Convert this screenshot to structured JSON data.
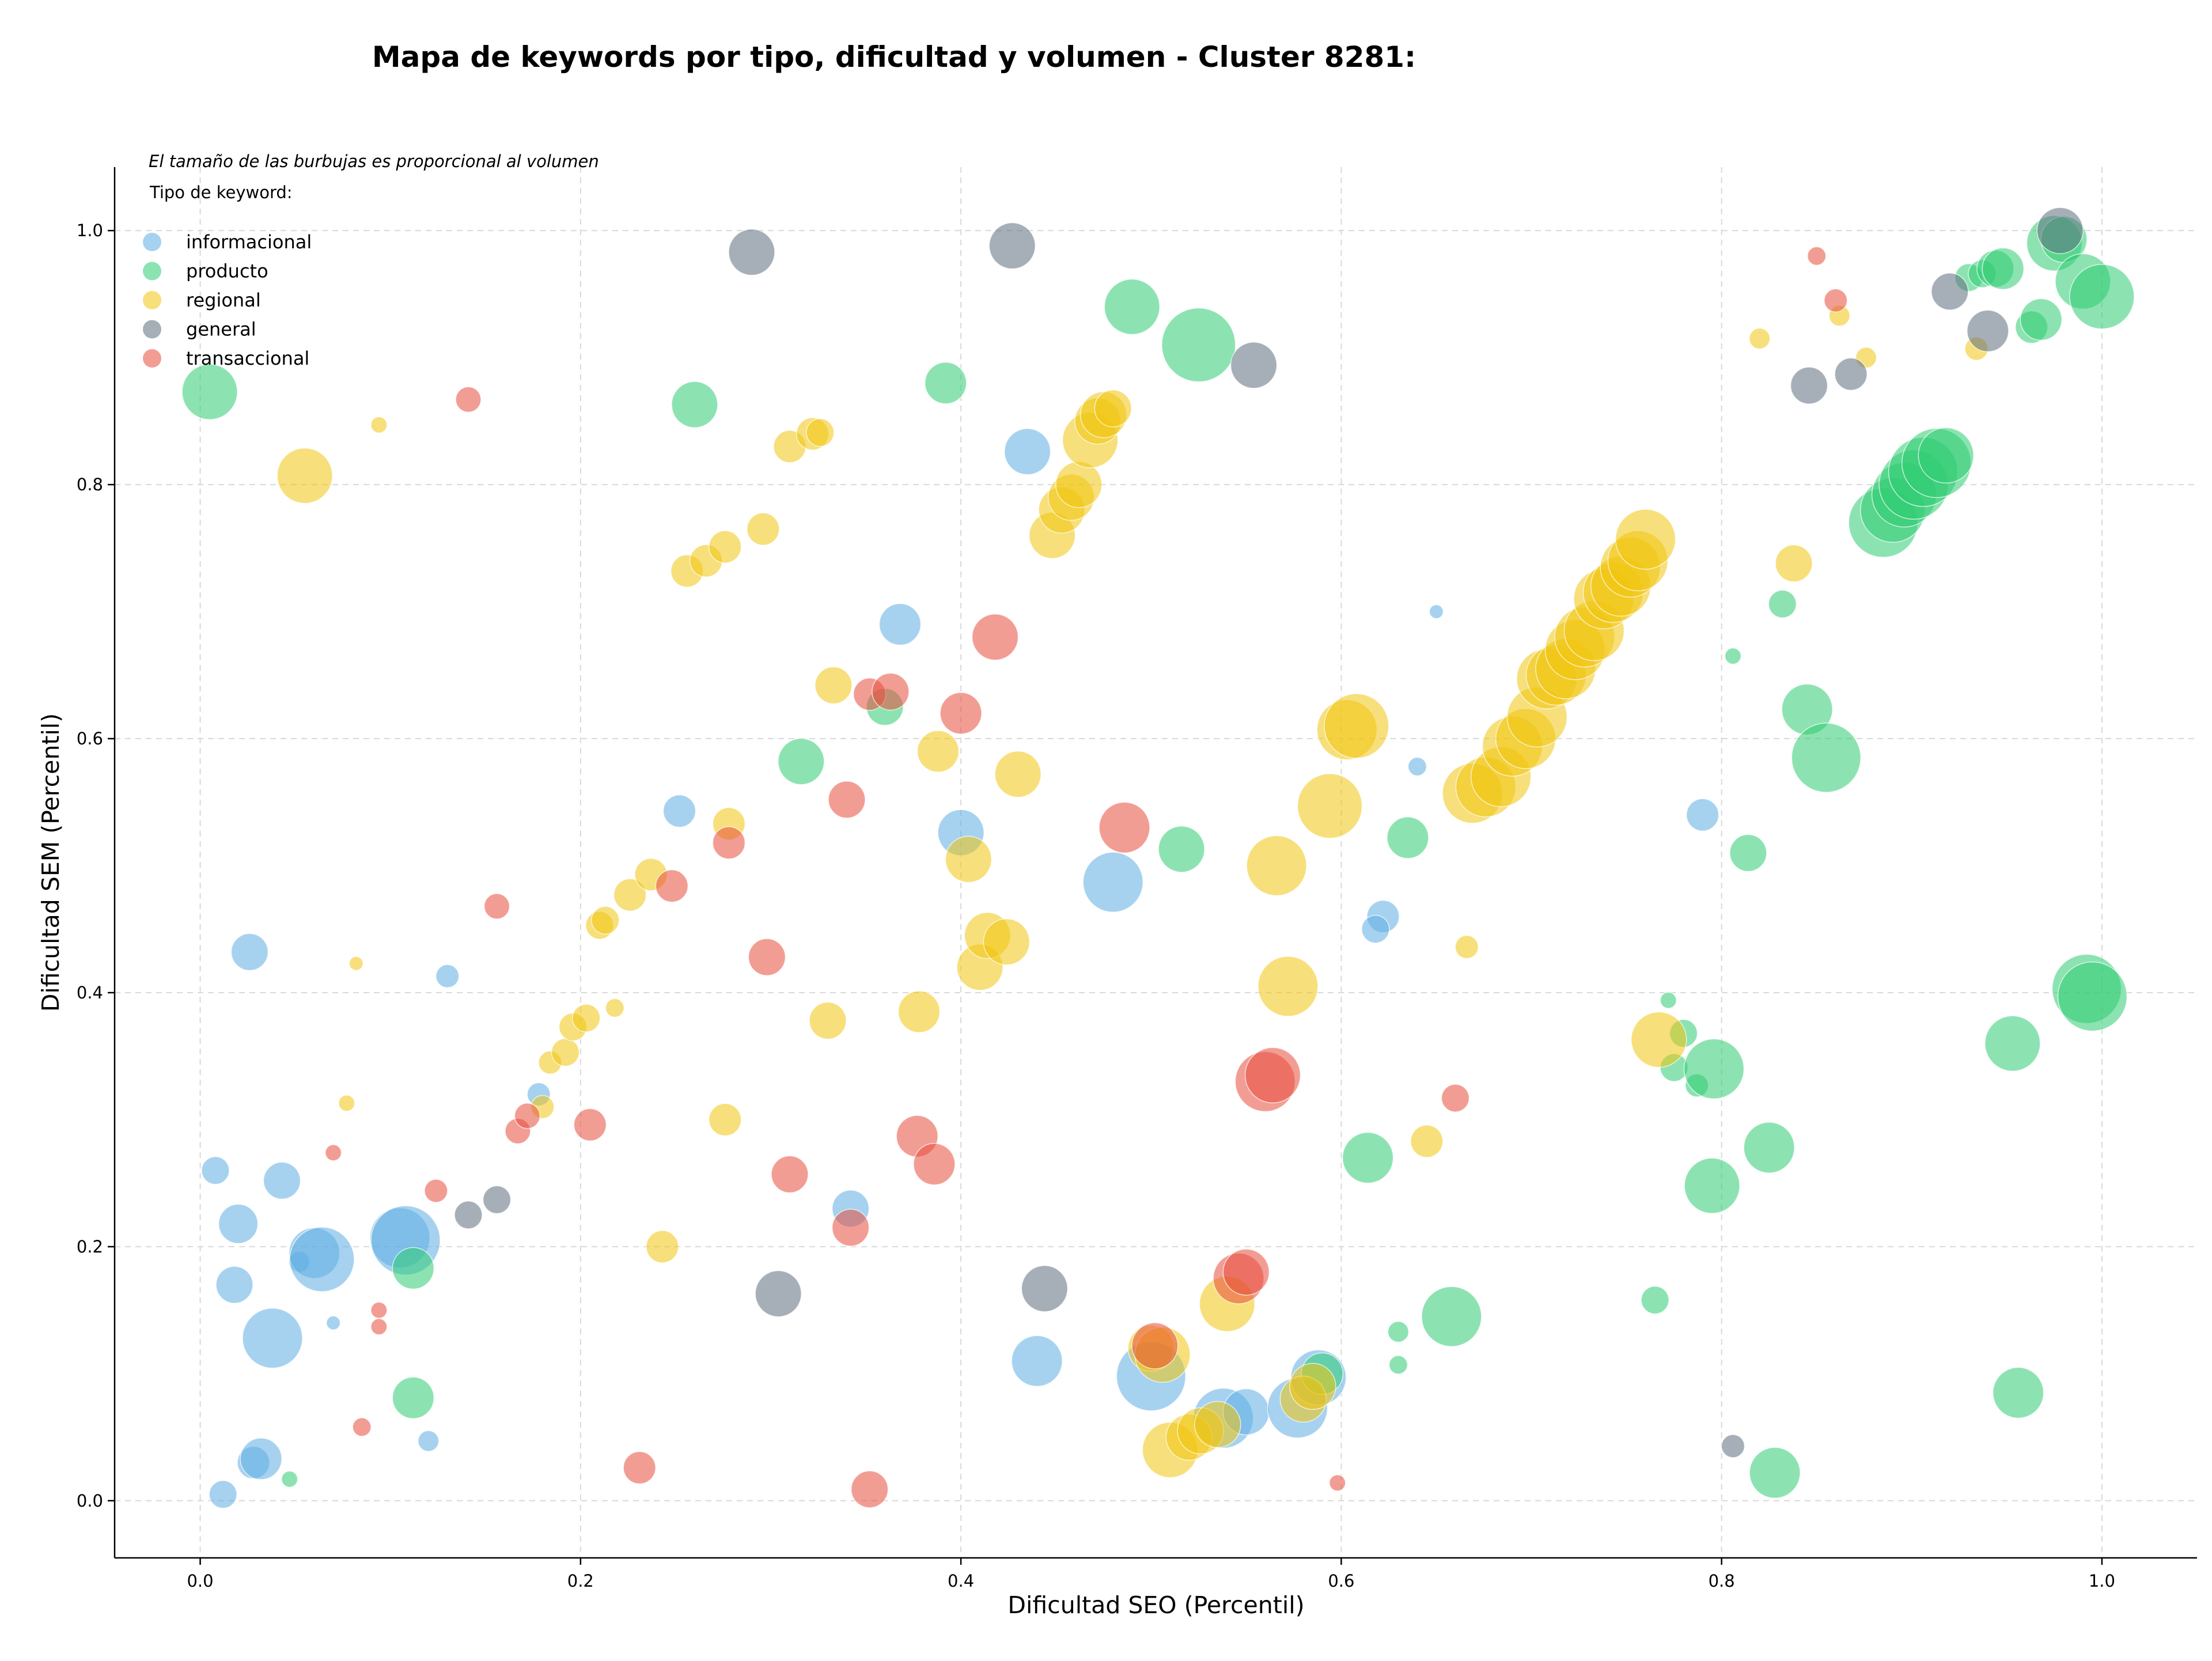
{
  "chart_data": {
    "type": "scatter",
    "title": "Mapa de keywords por tipo, dificultad y volumen - Cluster 8281:",
    "xlabel": "Dificultad SEO (Percentil)",
    "ylabel": "Dificultad SEM (Percentil)",
    "xlim": [
      -0.045,
      1.05
    ],
    "ylim": [
      -0.045,
      1.05
    ],
    "xticks": [
      0.0,
      0.2,
      0.4,
      0.6,
      0.8,
      1.0
    ],
    "yticks": [
      0.0,
      0.2,
      0.4,
      0.6,
      0.8,
      1.0
    ],
    "xtick_labels": [
      "0.0",
      "0.2",
      "0.4",
      "0.6",
      "0.8",
      "1.0"
    ],
    "ytick_labels": [
      "0.0",
      "0.2",
      "0.4",
      "0.6",
      "0.8",
      "1.0"
    ],
    "grid": true,
    "legend_placement": "top-left",
    "legend_title": "Tipo de keyword:",
    "note": "El tamaño de las burbujas es proporcional al volumen",
    "colors": {
      "informacional": "#5DADE2",
      "producto": "#2ECC71",
      "regional": "#F1C40F",
      "general": "#5D6D7E",
      "transaccional": "#E74C3C"
    },
    "series": [
      {
        "name": "informacional",
        "points": [
          [
            0.008,
            0.26,
            0.6
          ],
          [
            0.02,
            0.218,
            0.85
          ],
          [
            0.018,
            0.17,
            0.8
          ],
          [
            0.043,
            0.252,
            0.8
          ],
          [
            0.026,
            0.432,
            0.8
          ],
          [
            0.038,
            0.128,
            1.3
          ],
          [
            0.028,
            0.03,
            0.7
          ],
          [
            0.032,
            0.033,
            0.9
          ],
          [
            0.012,
            0.005,
            0.6
          ],
          [
            0.052,
            0.188,
            0.45
          ],
          [
            0.06,
            0.195,
            1.1
          ],
          [
            0.064,
            0.19,
            1.4
          ],
          [
            0.07,
            0.14,
            0.3
          ],
          [
            0.12,
            0.047,
            0.45
          ],
          [
            0.105,
            0.207,
            1.3
          ],
          [
            0.108,
            0.205,
            1.5
          ],
          [
            0.13,
            0.413,
            0.5
          ],
          [
            0.178,
            0.32,
            0.5
          ],
          [
            0.252,
            0.543,
            0.7
          ],
          [
            0.342,
            0.23,
            0.8
          ],
          [
            0.368,
            0.69,
            0.9
          ],
          [
            0.4,
            0.526,
            1.0
          ],
          [
            0.435,
            0.826,
            1.0
          ],
          [
            0.44,
            0.11,
            1.1
          ],
          [
            0.48,
            0.487,
            1.3
          ],
          [
            0.5,
            0.098,
            1.5
          ],
          [
            0.538,
            0.065,
            1.3
          ],
          [
            0.55,
            0.07,
            1.0
          ],
          [
            0.577,
            0.073,
            1.3
          ],
          [
            0.588,
            0.097,
            1.2
          ],
          [
            0.622,
            0.46,
            0.7
          ],
          [
            0.618,
            0.45,
            0.6
          ],
          [
            0.64,
            0.578,
            0.4
          ],
          [
            0.65,
            0.7,
            0.3
          ],
          [
            0.79,
            0.54,
            0.7
          ]
        ]
      },
      {
        "name": "producto",
        "points": [
          [
            0.005,
            0.873,
            1.2
          ],
          [
            0.047,
            0.017,
            0.35
          ],
          [
            0.112,
            0.183,
            0.9
          ],
          [
            0.112,
            0.081,
            0.9
          ],
          [
            0.26,
            0.863,
            1.0
          ],
          [
            0.316,
            0.582,
            1.0
          ],
          [
            0.36,
            0.625,
            0.8
          ],
          [
            0.392,
            0.88,
            0.9
          ],
          [
            0.49,
            0.94,
            1.2
          ],
          [
            0.525,
            0.91,
            1.6
          ],
          [
            0.516,
            0.513,
            1.0
          ],
          [
            0.59,
            0.1,
            0.9
          ],
          [
            0.614,
            0.27,
            1.1
          ],
          [
            0.63,
            0.133,
            0.45
          ],
          [
            0.63,
            0.107,
            0.4
          ],
          [
            0.635,
            0.522,
            0.9
          ],
          [
            0.658,
            0.145,
            1.3
          ],
          [
            0.765,
            0.158,
            0.6
          ],
          [
            0.772,
            0.394,
            0.35
          ],
          [
            0.775,
            0.341,
            0.6
          ],
          [
            0.78,
            0.368,
            0.6
          ],
          [
            0.787,
            0.327,
            0.5
          ],
          [
            0.796,
            0.34,
            1.3
          ],
          [
            0.795,
            0.248,
            1.2
          ],
          [
            0.806,
            0.665,
            0.35
          ],
          [
            0.814,
            0.51,
            0.8
          ],
          [
            0.825,
            0.278,
            1.1
          ],
          [
            0.828,
            0.022,
            1.1
          ],
          [
            0.832,
            0.706,
            0.6
          ],
          [
            0.845,
            0.623,
            1.1
          ],
          [
            0.855,
            0.585,
            1.5
          ],
          [
            0.885,
            0.77,
            1.5
          ],
          [
            0.89,
            0.78,
            1.4
          ],
          [
            0.896,
            0.792,
            1.4
          ],
          [
            0.901,
            0.8,
            1.5
          ],
          [
            0.906,
            0.81,
            1.5
          ],
          [
            0.913,
            0.817,
            1.5
          ],
          [
            0.918,
            0.823,
            1.2
          ],
          [
            0.93,
            0.963,
            0.6
          ],
          [
            0.937,
            0.966,
            0.6
          ],
          [
            0.944,
            0.97,
            0.8
          ],
          [
            0.948,
            0.97,
            0.9
          ],
          [
            0.953,
            0.36,
            1.2
          ],
          [
            0.956,
            0.085,
            1.1
          ],
          [
            0.963,
            0.924,
            0.7
          ],
          [
            0.968,
            0.93,
            0.9
          ],
          [
            0.975,
            0.99,
            1.2
          ],
          [
            0.98,
            0.993,
            1.0
          ],
          [
            0.99,
            0.96,
            1.2
          ],
          [
            1.0,
            0.948,
            1.4
          ],
          [
            0.992,
            0.403,
            1.5
          ],
          [
            0.995,
            0.397,
            1.5
          ]
        ]
      },
      {
        "name": "regional",
        "points": [
          [
            0.055,
            0.807,
            1.2
          ],
          [
            0.077,
            0.313,
            0.35
          ],
          [
            0.082,
            0.423,
            0.3
          ],
          [
            0.094,
            0.847,
            0.35
          ],
          [
            0.18,
            0.31,
            0.5
          ],
          [
            0.184,
            0.345,
            0.5
          ],
          [
            0.192,
            0.353,
            0.6
          ],
          [
            0.196,
            0.373,
            0.6
          ],
          [
            0.203,
            0.38,
            0.6
          ],
          [
            0.21,
            0.453,
            0.6
          ],
          [
            0.213,
            0.457,
            0.6
          ],
          [
            0.218,
            0.388,
            0.4
          ],
          [
            0.226,
            0.477,
            0.7
          ],
          [
            0.237,
            0.493,
            0.7
          ],
          [
            0.243,
            0.2,
            0.7
          ],
          [
            0.256,
            0.732,
            0.7
          ],
          [
            0.266,
            0.74,
            0.7
          ],
          [
            0.276,
            0.751,
            0.7
          ],
          [
            0.276,
            0.3,
            0.7
          ],
          [
            0.278,
            0.533,
            0.7
          ],
          [
            0.296,
            0.765,
            0.7
          ],
          [
            0.31,
            0.83,
            0.7
          ],
          [
            0.322,
            0.84,
            0.7
          ],
          [
            0.326,
            0.841,
            0.6
          ],
          [
            0.333,
            0.642,
            0.8
          ],
          [
            0.33,
            0.378,
            0.8
          ],
          [
            0.378,
            0.385,
            0.9
          ],
          [
            0.388,
            0.59,
            0.9
          ],
          [
            0.404,
            0.505,
            1.0
          ],
          [
            0.41,
            0.42,
            1.0
          ],
          [
            0.414,
            0.445,
            1.0
          ],
          [
            0.43,
            0.572,
            1.0
          ],
          [
            0.424,
            0.44,
            1.0
          ],
          [
            0.448,
            0.76,
            1.0
          ],
          [
            0.453,
            0.78,
            1.0
          ],
          [
            0.458,
            0.79,
            1.0
          ],
          [
            0.462,
            0.8,
            1.0
          ],
          [
            0.468,
            0.835,
            1.2
          ],
          [
            0.472,
            0.85,
            1.0
          ],
          [
            0.475,
            0.855,
            1.0
          ],
          [
            0.48,
            0.86,
            0.8
          ],
          [
            0.5,
            0.12,
            1.0
          ],
          [
            0.506,
            0.115,
            1.2
          ],
          [
            0.51,
            0.04,
            1.2
          ],
          [
            0.52,
            0.05,
            1.0
          ],
          [
            0.526,
            0.055,
            1.0
          ],
          [
            0.535,
            0.06,
            1.0
          ],
          [
            0.54,
            0.155,
            1.2
          ],
          [
            0.566,
            0.5,
            1.3
          ],
          [
            0.572,
            0.405,
            1.3
          ],
          [
            0.58,
            0.08,
            1.0
          ],
          [
            0.585,
            0.09,
            1.0
          ],
          [
            0.594,
            0.547,
            1.4
          ],
          [
            0.603,
            0.607,
            1.3
          ],
          [
            0.608,
            0.61,
            1.4
          ],
          [
            0.645,
            0.283,
            0.7
          ],
          [
            0.666,
            0.436,
            0.5
          ],
          [
            0.669,
            0.557,
            1.3
          ],
          [
            0.676,
            0.562,
            1.3
          ],
          [
            0.684,
            0.57,
            1.3
          ],
          [
            0.69,
            0.594,
            1.3
          ],
          [
            0.697,
            0.6,
            1.3
          ],
          [
            0.703,
            0.617,
            1.3
          ],
          [
            0.708,
            0.647,
            1.3
          ],
          [
            0.713,
            0.65,
            1.3
          ],
          [
            0.718,
            0.655,
            1.3
          ],
          [
            0.723,
            0.67,
            1.3
          ],
          [
            0.728,
            0.68,
            1.3
          ],
          [
            0.733,
            0.685,
            1.3
          ],
          [
            0.738,
            0.71,
            1.3
          ],
          [
            0.743,
            0.715,
            1.3
          ],
          [
            0.747,
            0.72,
            1.3
          ],
          [
            0.752,
            0.735,
            1.3
          ],
          [
            0.756,
            0.74,
            1.3
          ],
          [
            0.76,
            0.757,
            1.3
          ],
          [
            0.767,
            0.363,
            1.2
          ],
          [
            0.82,
            0.915,
            0.45
          ],
          [
            0.838,
            0.738,
            0.8
          ],
          [
            0.862,
            0.933,
            0.45
          ],
          [
            0.876,
            0.9,
            0.45
          ],
          [
            0.934,
            0.907,
            0.5
          ]
        ]
      },
      {
        "name": "general",
        "points": [
          [
            0.141,
            0.225,
            0.6
          ],
          [
            0.156,
            0.237,
            0.6
          ],
          [
            0.29,
            0.983,
            1.0
          ],
          [
            0.304,
            0.163,
            1.0
          ],
          [
            0.427,
            0.988,
            1.0
          ],
          [
            0.444,
            0.167,
            1.0
          ],
          [
            0.554,
            0.894,
            1.0
          ],
          [
            0.806,
            0.043,
            0.5
          ],
          [
            0.846,
            0.878,
            0.8
          ],
          [
            0.868,
            0.887,
            0.7
          ],
          [
            0.92,
            0.952,
            0.8
          ],
          [
            0.94,
            0.921,
            0.9
          ],
          [
            0.978,
            1.0,
            1.0
          ]
        ]
      },
      {
        "name": "transaccional",
        "points": [
          [
            0.07,
            0.274,
            0.35
          ],
          [
            0.085,
            0.058,
            0.4
          ],
          [
            0.094,
            0.15,
            0.35
          ],
          [
            0.094,
            0.137,
            0.35
          ],
          [
            0.124,
            0.244,
            0.5
          ],
          [
            0.141,
            0.867,
            0.55
          ],
          [
            0.156,
            0.468,
            0.55
          ],
          [
            0.167,
            0.291,
            0.55
          ],
          [
            0.172,
            0.303,
            0.55
          ],
          [
            0.205,
            0.296,
            0.7
          ],
          [
            0.231,
            0.026,
            0.7
          ],
          [
            0.248,
            0.484,
            0.7
          ],
          [
            0.278,
            0.518,
            0.7
          ],
          [
            0.298,
            0.428,
            0.8
          ],
          [
            0.31,
            0.257,
            0.8
          ],
          [
            0.34,
            0.552,
            0.8
          ],
          [
            0.342,
            0.215,
            0.8
          ],
          [
            0.352,
            0.009,
            0.8
          ],
          [
            0.352,
            0.635,
            0.7
          ],
          [
            0.363,
            0.637,
            0.8
          ],
          [
            0.377,
            0.287,
            0.9
          ],
          [
            0.386,
            0.265,
            0.9
          ],
          [
            0.4,
            0.62,
            0.9
          ],
          [
            0.418,
            0.68,
            1.0
          ],
          [
            0.486,
            0.53,
            1.1
          ],
          [
            0.502,
            0.122,
            1.0
          ],
          [
            0.546,
            0.175,
            1.1
          ],
          [
            0.55,
            0.18,
            1.0
          ],
          [
            0.56,
            0.33,
            1.3
          ],
          [
            0.564,
            0.335,
            1.2
          ],
          [
            0.598,
            0.014,
            0.35
          ],
          [
            0.66,
            0.317,
            0.6
          ],
          [
            0.85,
            0.98,
            0.4
          ],
          [
            0.86,
            0.945,
            0.5
          ]
        ]
      }
    ]
  }
}
